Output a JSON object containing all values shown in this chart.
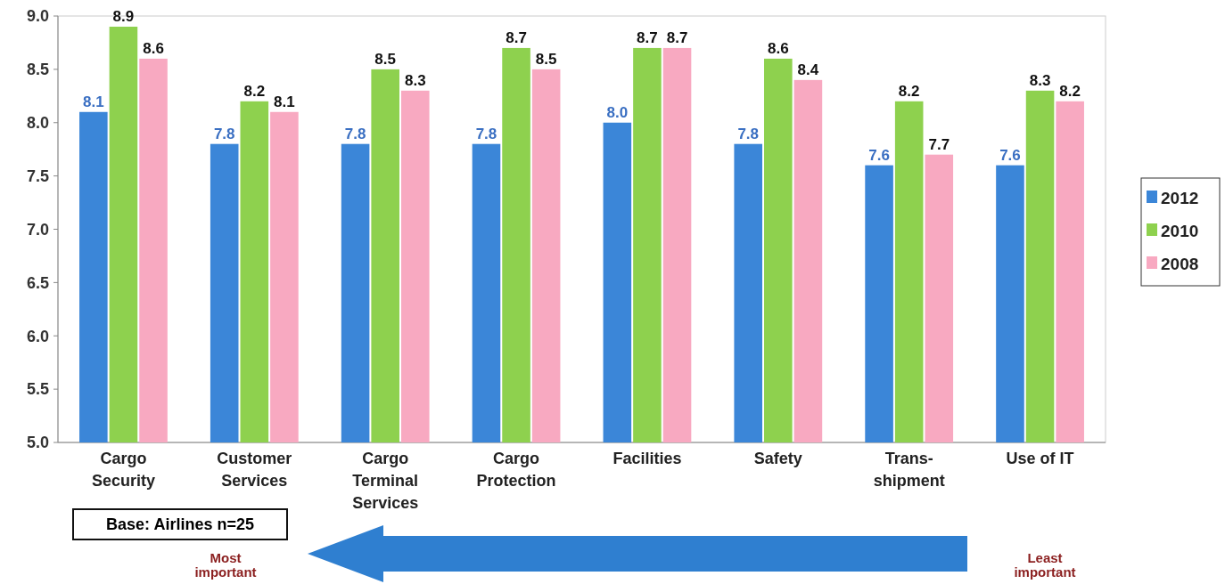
{
  "chart_data": {
    "type": "bar",
    "categories": [
      "Cargo Security",
      "Customer Services",
      "Cargo Terminal Services",
      "Cargo Protection",
      "Facilities",
      "Safety",
      "Trans-shipment",
      "Use of IT"
    ],
    "series": [
      {
        "name": "2012",
        "color": "#3b86d8",
        "values": [
          8.1,
          7.8,
          7.8,
          7.8,
          8.0,
          7.8,
          7.6,
          7.6
        ],
        "value_labels": [
          "8.1",
          "7.8",
          "7.8",
          "7.8",
          "8.0",
          "7.8",
          "7.6",
          "7.6"
        ]
      },
      {
        "name": "2010",
        "color": "#8ed14e",
        "values": [
          8.9,
          8.2,
          8.5,
          8.7,
          8.7,
          8.6,
          8.2,
          8.3
        ]
      },
      {
        "name": "2008",
        "color": "#f8a9c1",
        "values": [
          8.6,
          8.1,
          8.3,
          8.5,
          8.7,
          8.4,
          7.7,
          8.2
        ]
      }
    ],
    "ylim": [
      5,
      9
    ],
    "yticks": [
      {
        "value": 5,
        "label": "5.0"
      },
      {
        "value": 5.5,
        "label": "5.5"
      },
      {
        "value": 6,
        "label": "6.0"
      },
      {
        "value": 6.5,
        "label": "6.5"
      },
      {
        "value": 7,
        "label": "7.0"
      },
      {
        "value": 7.5,
        "label": "7.5"
      },
      {
        "value": 8,
        "label": "8.0"
      },
      {
        "value": 8.5,
        "label": "8.5"
      },
      {
        "value": 9,
        "label": "9.0"
      }
    ],
    "data_labels": true,
    "grid": false,
    "legend": "right",
    "annotations": [
      "Base: Airlines n=25",
      "Most important",
      "Least important"
    ]
  }
}
